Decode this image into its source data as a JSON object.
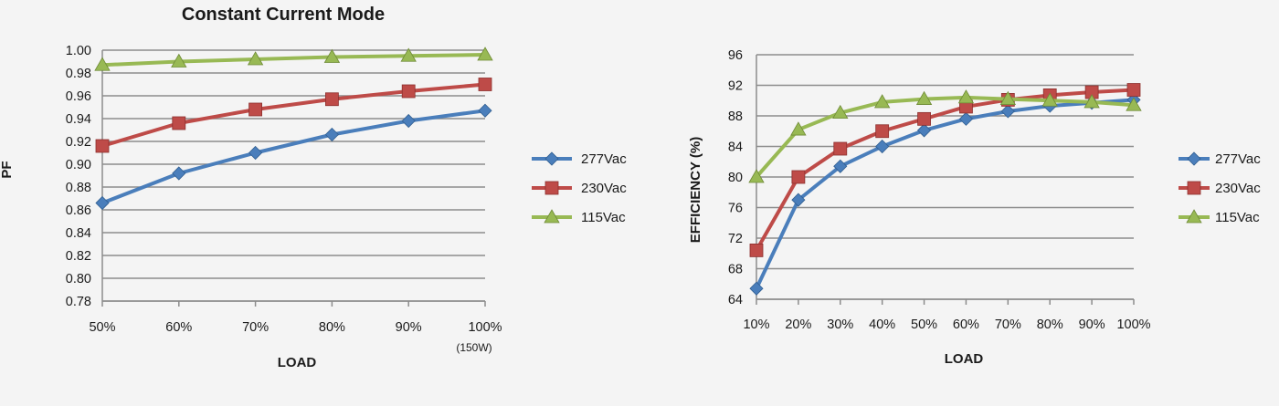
{
  "chart_data": [
    {
      "type": "line",
      "title": "Constant Current Mode",
      "xlabel": "LOAD",
      "ylabel": "PF",
      "categories": [
        "50%",
        "60%",
        "70%",
        "80%",
        "90%",
        "100%"
      ],
      "x_note": "(150W)",
      "ylim": [
        0.78,
        1.0
      ],
      "yticks": [
        "0.78",
        "0.80",
        "0.82",
        "0.84",
        "0.86",
        "0.88",
        "0.90",
        "0.92",
        "0.94",
        "0.96",
        "0.98",
        "1.00"
      ],
      "grid": true,
      "legend_position": "right",
      "series": [
        {
          "name": "277Vac",
          "color": "#4a7ebb",
          "marker": "diamond",
          "values": [
            0.866,
            0.892,
            0.91,
            0.926,
            0.938,
            0.947
          ]
        },
        {
          "name": "230Vac",
          "color": "#be4b48",
          "marker": "square",
          "values": [
            0.916,
            0.936,
            0.948,
            0.957,
            0.964,
            0.97
          ]
        },
        {
          "name": "115Vac",
          "color": "#98b954",
          "marker": "triangle",
          "values": [
            0.987,
            0.99,
            0.992,
            0.994,
            0.995,
            0.996
          ]
        }
      ]
    },
    {
      "type": "line",
      "title": "",
      "xlabel": "LOAD",
      "ylabel": "EFFICIENCY (%)",
      "categories": [
        "10%",
        "20%",
        "30%",
        "40%",
        "50%",
        "60%",
        "70%",
        "80%",
        "90%",
        "100%"
      ],
      "ylim": [
        64,
        96
      ],
      "yticks": [
        "64",
        "68",
        "72",
        "76",
        "80",
        "84",
        "88",
        "92",
        "96"
      ],
      "grid": true,
      "legend_position": "right",
      "series": [
        {
          "name": "277Vac",
          "color": "#4a7ebb",
          "marker": "diamond",
          "values": [
            65.4,
            77.0,
            81.4,
            84.0,
            86.1,
            87.6,
            88.6,
            89.3,
            89.7,
            90.1
          ]
        },
        {
          "name": "230Vac",
          "color": "#be4b48",
          "marker": "square",
          "values": [
            70.4,
            80.0,
            83.7,
            86.0,
            87.6,
            89.2,
            90.1,
            90.7,
            91.1,
            91.4
          ]
        },
        {
          "name": "115Vac",
          "color": "#98b954",
          "marker": "triangle",
          "values": [
            80.0,
            86.2,
            88.4,
            89.8,
            90.2,
            90.4,
            90.2,
            90.0,
            89.8,
            89.4
          ]
        }
      ]
    }
  ]
}
